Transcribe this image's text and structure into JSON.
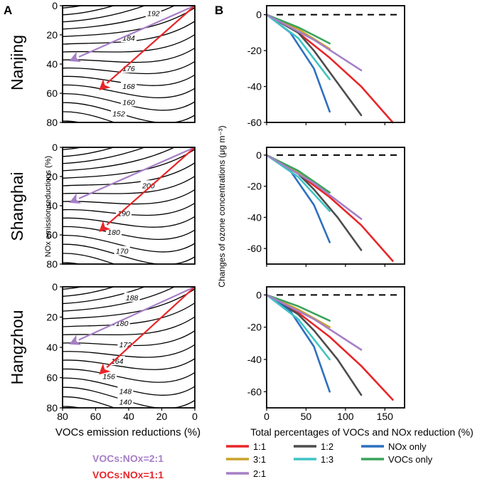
{
  "panel_a_label": "A",
  "panel_b_label": "B",
  "colors": {
    "1:1": "#e8262a",
    "1:2": "#4d4d4d",
    "NOx only": "#2f6fc0",
    "3:1": "#c8a22a",
    "1:3": "#3fc4c4",
    "VOCs only": "#3aa35a",
    "2:1": "#a67fc6"
  },
  "legend_a": [
    {
      "text": "VOCs:NOx=2:1",
      "color": "#a67fc6"
    },
    {
      "text": "VOCs:NOx=1:1",
      "color": "#e8262a"
    }
  ],
  "chart_data": [
    {
      "type": "contour",
      "city": "Nanjing",
      "xlabel": "VOCs  emission  reductions (%)",
      "ylabel": "NOx  emission  reductions (%)",
      "xlim": [
        80,
        0
      ],
      "ylim": [
        0,
        80
      ],
      "x_ticks": [
        "80",
        "60",
        "40",
        "20",
        "0"
      ],
      "y_ticks": [
        "0",
        "20",
        "40",
        "60",
        "80"
      ],
      "contour_labels": [
        {
          "text": "192",
          "x": 25,
          "y": 5
        },
        {
          "text": "184",
          "x": 40,
          "y": 22
        },
        {
          "text": "176",
          "x": 40,
          "y": 43
        },
        {
          "text": "168",
          "x": 40,
          "y": 55
        },
        {
          "text": "160",
          "x": 40,
          "y": 66
        },
        {
          "text": "152",
          "x": 46,
          "y": 74
        }
      ],
      "arrows": [
        {
          "ratio": "2:1",
          "from": [
            0,
            0
          ],
          "to": [
            76,
            38
          ]
        },
        {
          "ratio": "1:1",
          "from": [
            0,
            0
          ],
          "to": [
            58,
            58
          ]
        }
      ]
    },
    {
      "type": "contour",
      "city": "Shanghai",
      "xlim": [
        80,
        0
      ],
      "ylim": [
        0,
        80
      ],
      "x_ticks": [
        "80",
        "60",
        "40",
        "20",
        "0"
      ],
      "y_ticks": [
        "0",
        "20",
        "40",
        "60",
        "80"
      ],
      "contour_labels": [
        {
          "text": "200",
          "x": 28,
          "y": 26
        },
        {
          "text": "190",
          "x": 43,
          "y": 45
        },
        {
          "text": "180",
          "x": 49,
          "y": 58
        },
        {
          "text": "170",
          "x": 44,
          "y": 71
        }
      ],
      "arrows": [
        {
          "ratio": "2:1",
          "from": [
            0,
            0
          ],
          "to": [
            76,
            38
          ]
        },
        {
          "ratio": "1:1",
          "from": [
            0,
            0
          ],
          "to": [
            58,
            58
          ]
        }
      ]
    },
    {
      "type": "contour",
      "city": "Hangzhou",
      "xlim": [
        80,
        0
      ],
      "ylim": [
        0,
        80
      ],
      "x_ticks": [
        "80",
        "60",
        "40",
        "20",
        "0"
      ],
      "y_ticks": [
        "0",
        "20",
        "40",
        "60",
        "80"
      ],
      "contour_labels": [
        {
          "text": "188",
          "x": 38,
          "y": 7
        },
        {
          "text": "180",
          "x": 44,
          "y": 24
        },
        {
          "text": "172",
          "x": 42,
          "y": 38
        },
        {
          "text": "164",
          "x": 47,
          "y": 49
        },
        {
          "text": "156",
          "x": 52,
          "y": 59
        },
        {
          "text": "148",
          "x": 42,
          "y": 69
        },
        {
          "text": "140",
          "x": 42,
          "y": 76
        }
      ],
      "arrows": [
        {
          "ratio": "2:1",
          "from": [
            0,
            0
          ],
          "to": [
            76,
            38
          ]
        },
        {
          "ratio": "1:1",
          "from": [
            0,
            0
          ],
          "to": [
            58,
            58
          ]
        }
      ]
    },
    {
      "type": "line",
      "city": "Nanjing",
      "xlabel": "Total percentages of VOCs and NOx reduction (%)",
      "ylabel": "Changes of ozone concentrations (μg m⁻³)",
      "xlim": [
        0,
        175
      ],
      "ylim": [
        -60,
        5
      ],
      "x_ticks": [
        "0",
        "50",
        "100",
        "150"
      ],
      "y_ticks": [
        "0",
        "-20",
        "-40",
        "-60"
      ],
      "series": [
        {
          "name": "1:1",
          "x": [
            0,
            40,
            80,
            120,
            160
          ],
          "y": [
            0,
            -10,
            -24,
            -40,
            -60
          ]
        },
        {
          "name": "1:2",
          "x": [
            0,
            40,
            60,
            90,
            120
          ],
          "y": [
            0,
            -10,
            -20,
            -38,
            -56
          ]
        },
        {
          "name": "NOx only",
          "x": [
            0,
            30,
            60,
            80
          ],
          "y": [
            0,
            -10,
            -30,
            -54
          ]
        },
        {
          "name": "3:1",
          "x": [
            0,
            40,
            80
          ],
          "y": [
            0,
            -8,
            -19
          ]
        },
        {
          "name": "1:3",
          "x": [
            0,
            40,
            80
          ],
          "y": [
            0,
            -13,
            -36
          ]
        },
        {
          "name": "VOCs only",
          "x": [
            0,
            40,
            80
          ],
          "y": [
            0,
            -7,
            -16
          ]
        },
        {
          "name": "2:1",
          "x": [
            0,
            60,
            120
          ],
          "y": [
            0,
            -14,
            -31
          ]
        }
      ]
    },
    {
      "type": "line",
      "city": "Shanghai",
      "xlim": [
        0,
        175
      ],
      "ylim": [
        -70,
        5
      ],
      "x_ticks": [
        "0",
        "50",
        "100",
        "150"
      ],
      "y_ticks": [
        "0",
        "-20",
        "-40",
        "-60"
      ],
      "series": [
        {
          "name": "1:1",
          "x": [
            0,
            40,
            80,
            120,
            160
          ],
          "y": [
            0,
            -12,
            -27,
            -45,
            -68
          ]
        },
        {
          "name": "1:2",
          "x": [
            0,
            40,
            60,
            90,
            120
          ],
          "y": [
            0,
            -12,
            -22,
            -40,
            -61
          ]
        },
        {
          "name": "NOx only",
          "x": [
            0,
            30,
            60,
            80
          ],
          "y": [
            0,
            -10,
            -32,
            -56
          ]
        },
        {
          "name": "3:1",
          "x": [
            0,
            40,
            80
          ],
          "y": [
            0,
            -11,
            -24
          ]
        },
        {
          "name": "1:3",
          "x": [
            0,
            40,
            80
          ],
          "y": [
            0,
            -14,
            -36
          ]
        },
        {
          "name": "VOCs only",
          "x": [
            0,
            40,
            80
          ],
          "y": [
            0,
            -10,
            -24
          ]
        },
        {
          "name": "2:1",
          "x": [
            0,
            60,
            120
          ],
          "y": [
            0,
            -18,
            -41
          ]
        }
      ]
    },
    {
      "type": "line",
      "city": "Hangzhou",
      "xlim": [
        0,
        175
      ],
      "ylim": [
        -70,
        5
      ],
      "x_ticks": [
        "0",
        "50",
        "100",
        "150"
      ],
      "y_ticks": [
        "0",
        "-20",
        "-40",
        "-60"
      ],
      "series": [
        {
          "name": "1:1",
          "x": [
            0,
            40,
            80,
            120,
            160
          ],
          "y": [
            0,
            -11,
            -26,
            -44,
            -65
          ]
        },
        {
          "name": "1:2",
          "x": [
            0,
            40,
            60,
            90,
            120
          ],
          "y": [
            0,
            -12,
            -22,
            -40,
            -62
          ]
        },
        {
          "name": "NOx only",
          "x": [
            0,
            30,
            60,
            80
          ],
          "y": [
            0,
            -10,
            -32,
            -60
          ]
        },
        {
          "name": "3:1",
          "x": [
            0,
            40,
            80
          ],
          "y": [
            0,
            -9,
            -20
          ]
        },
        {
          "name": "1:3",
          "x": [
            0,
            40,
            80
          ],
          "y": [
            0,
            -15,
            -40
          ]
        },
        {
          "name": "VOCs only",
          "x": [
            0,
            40,
            80
          ],
          "y": [
            0,
            -7,
            -16
          ]
        },
        {
          "name": "2:1",
          "x": [
            0,
            60,
            120
          ],
          "y": [
            0,
            -15,
            -34
          ]
        }
      ]
    }
  ],
  "legend_b": [
    {
      "name": "1:1",
      "label": "1:1"
    },
    {
      "name": "1:2",
      "label": "1:2"
    },
    {
      "name": "NOx only",
      "label": "NOx  only"
    },
    {
      "name": "3:1",
      "label": "3:1"
    },
    {
      "name": "1:3",
      "label": "1:3"
    },
    {
      "name": "VOCs only",
      "label": "VOCs only"
    },
    {
      "name": "2:1",
      "label": "2:1"
    }
  ]
}
